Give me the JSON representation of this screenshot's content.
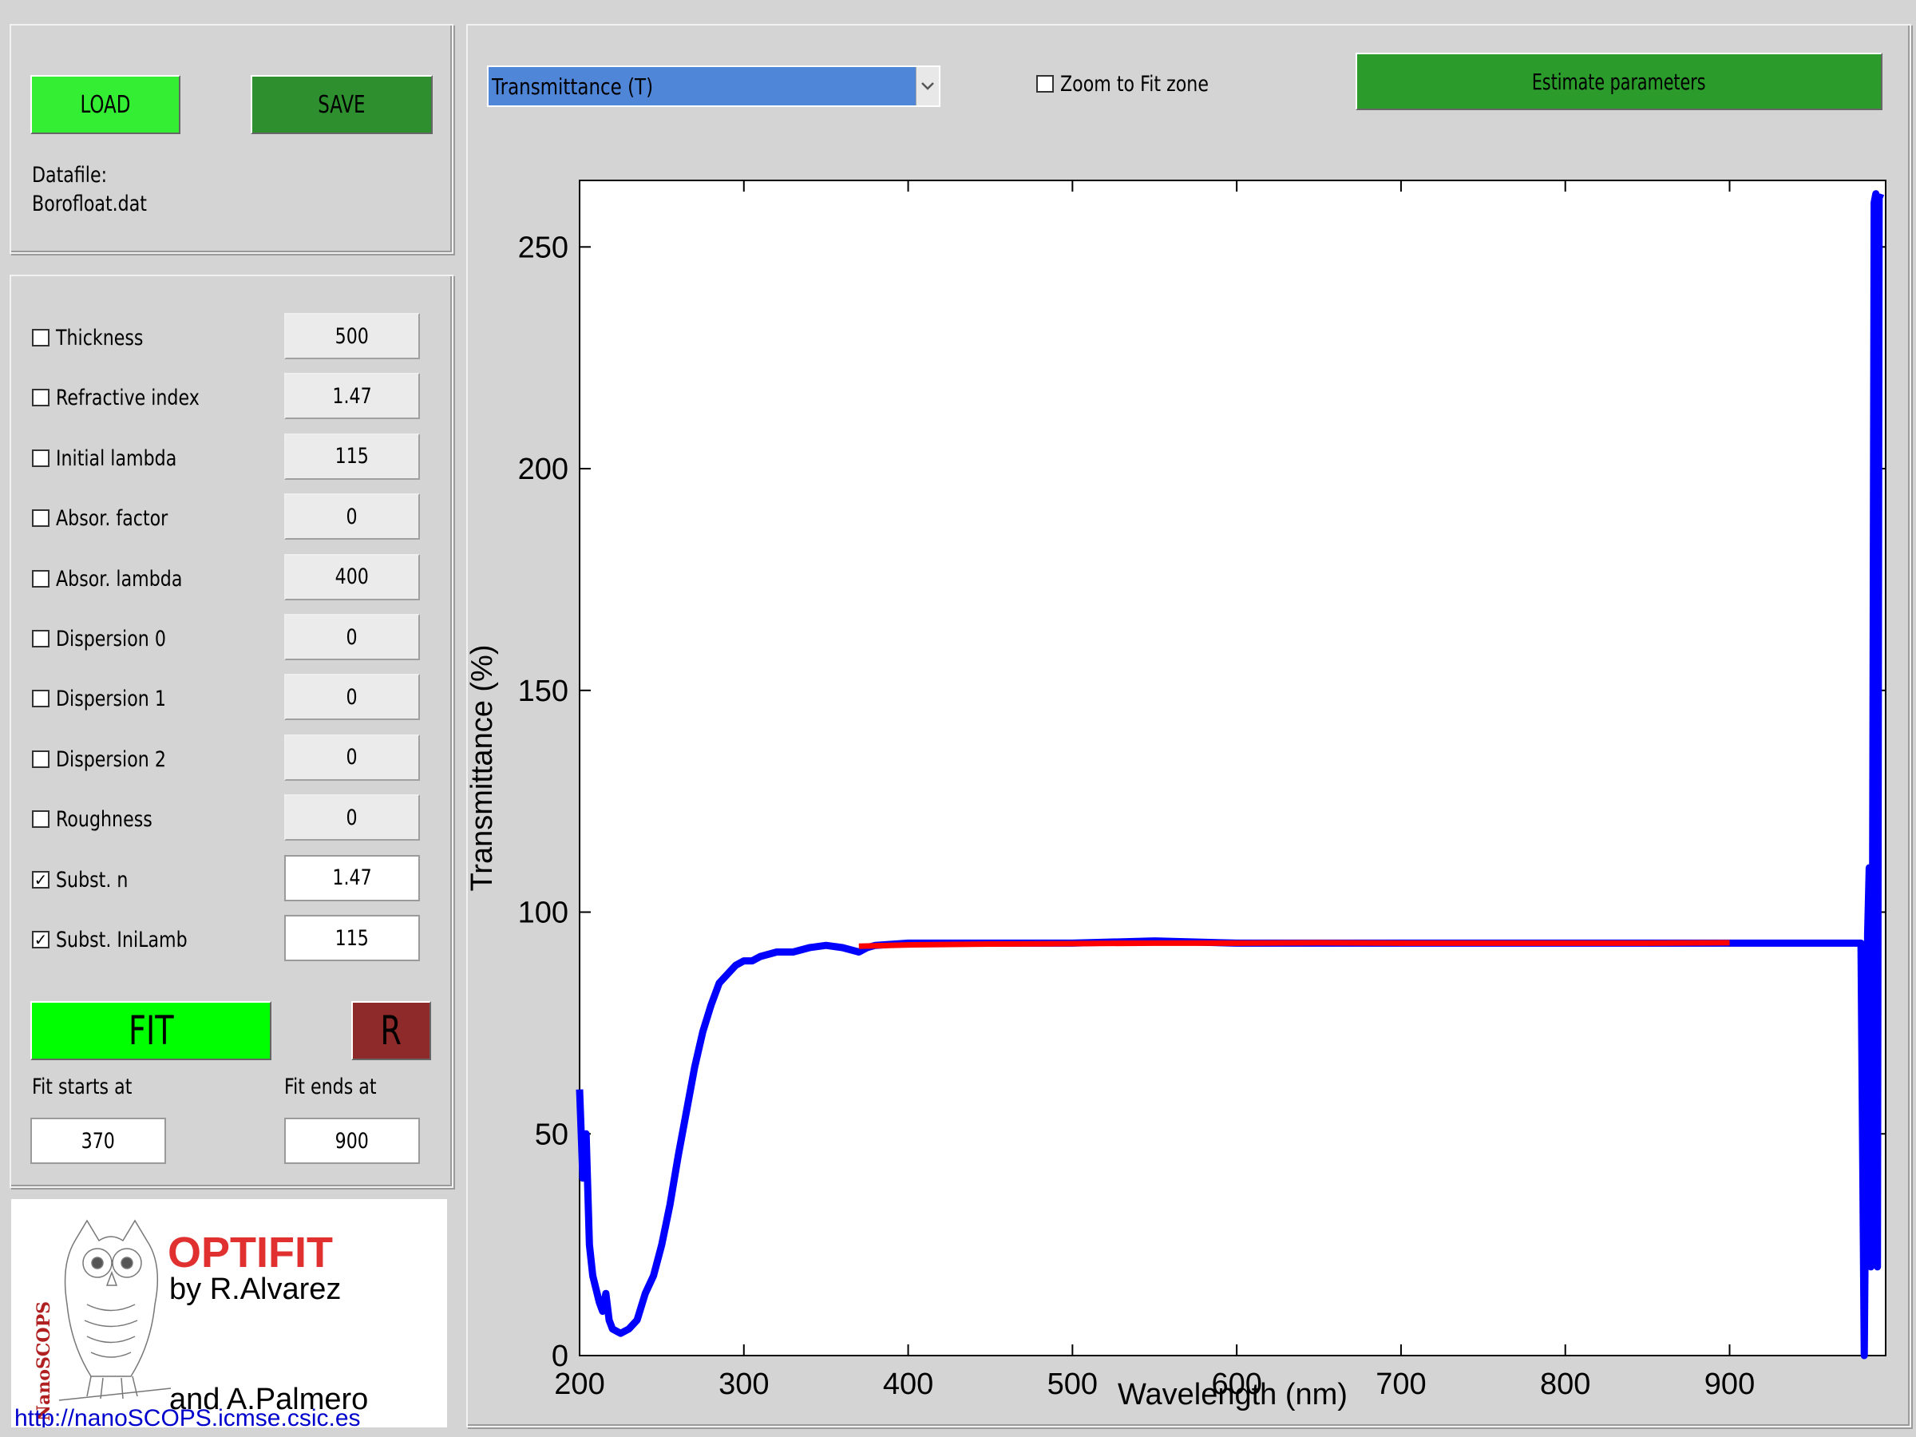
{
  "file_panel": {
    "load_label": "LOAD",
    "save_label": "SAVE",
    "datafile_label": "Datafile:",
    "datafile_name": "Borofloat.dat"
  },
  "params": [
    {
      "label": "Thickness",
      "value": "500",
      "checked": false
    },
    {
      "label": "Refractive index",
      "value": "1.47",
      "checked": false
    },
    {
      "label": "Initial lambda",
      "value": "115",
      "checked": false
    },
    {
      "label": "Absor. factor",
      "value": "0",
      "checked": false
    },
    {
      "label": "Absor. lambda",
      "value": "400",
      "checked": false
    },
    {
      "label": "Dispersion 0",
      "value": "0",
      "checked": false
    },
    {
      "label": "Dispersion 1",
      "value": "0",
      "checked": false
    },
    {
      "label": "Dispersion 2",
      "value": "0",
      "checked": false
    },
    {
      "label": "Roughness",
      "value": "0",
      "checked": false
    },
    {
      "label": "Subst. n",
      "value": "1.47",
      "checked": true
    },
    {
      "label": "Subst. IniLamb",
      "value": "115",
      "checked": true
    }
  ],
  "fit": {
    "fit_label": "FIT",
    "reset_label": "R",
    "start_label": "Fit starts at",
    "end_label": "Fit ends at",
    "start_value": "370",
    "end_value": "900"
  },
  "logo": {
    "vertical_text": "NanoSCOPS",
    "title": "OPTIFIT",
    "author1": "by R.Alvarez",
    "author2": "and A.Palmero",
    "url": "http://nanoSCOPS.icmse.csic.es"
  },
  "toolbar": {
    "mode_selected": "Transmittance (T)",
    "zoom_label": "Zoom to Fit zone",
    "zoom_checked": false,
    "estimate_label": "Estimate parameters"
  },
  "colors": {
    "load": "#33ee33",
    "save": "#2d8f2d",
    "fit": "#00ff00",
    "reset": "#8f2a2a",
    "estimate": "#2b9b2b",
    "select": "#4f86d8",
    "data_series": "#0000ff",
    "fit_series": "#ff0000",
    "title": "#e03030",
    "url": "#0000cc"
  },
  "chart_data": {
    "type": "line",
    "xlabel": "Wavelength (nm)",
    "ylabel": "Transmittance (%)",
    "xlim": [
      200,
      995
    ],
    "ylim": [
      0,
      265
    ],
    "xticks": [
      200,
      300,
      400,
      500,
      600,
      700,
      800,
      900
    ],
    "yticks": [
      0,
      50,
      100,
      150,
      200,
      250
    ],
    "series": [
      {
        "color": "#0000ff",
        "x": [
          200,
          202,
          204,
          206,
          208,
          210,
          212,
          214,
          216,
          218,
          220,
          225,
          230,
          235,
          240,
          245,
          250,
          255,
          260,
          265,
          270,
          275,
          280,
          285,
          290,
          295,
          300,
          305,
          310,
          320,
          330,
          340,
          350,
          360,
          370,
          375,
          380,
          400,
          450,
          500,
          550,
          600,
          650,
          700,
          750,
          800,
          850,
          900,
          950,
          980,
          982,
          984,
          985,
          986,
          987,
          988,
          989,
          990,
          991,
          992
        ],
        "y": [
          60,
          40,
          50,
          25,
          18,
          15,
          12,
          10,
          14,
          8,
          6,
          5,
          6,
          8,
          14,
          18,
          25,
          34,
          45,
          55,
          65,
          73,
          79,
          84,
          86,
          88,
          89,
          89,
          90,
          91,
          91,
          92,
          92.5,
          92,
          91,
          92,
          92.5,
          93,
          93,
          93,
          93.5,
          93,
          93,
          93,
          93,
          93,
          93,
          93,
          93,
          93,
          0,
          95,
          110,
          20,
          94,
          260,
          262,
          20,
          261,
          262
        ]
      },
      {
        "color": "#ff0000",
        "x": [
          370,
          400,
          450,
          500,
          550,
          600,
          650,
          700,
          750,
          800,
          850,
          900
        ],
        "y": [
          92.3,
          92.6,
          92.8,
          92.9,
          93.0,
          93.0,
          93.1,
          93.0,
          93.0,
          93.0,
          93.0,
          93.1
        ]
      }
    ]
  }
}
